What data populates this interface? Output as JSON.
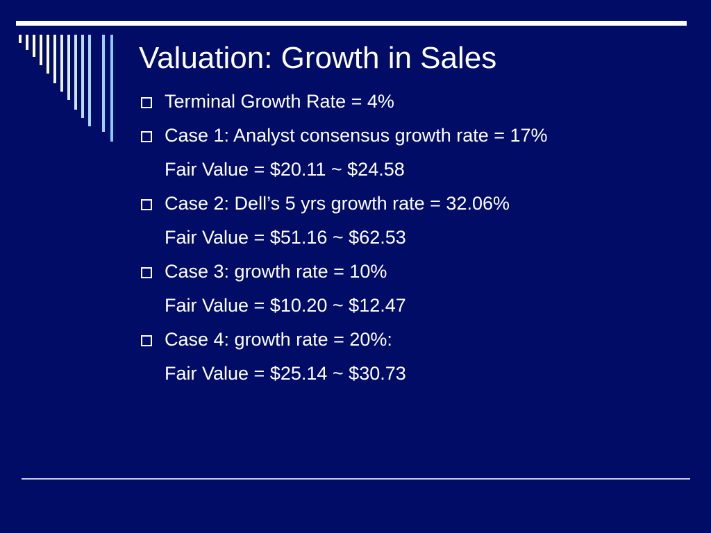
{
  "slide": {
    "title": "Valuation: Growth in Sales",
    "items": [
      {
        "type": "bullet",
        "text": "Terminal Growth Rate = 4%"
      },
      {
        "type": "bullet",
        "text": "Case 1: Analyst consensus growth rate = 17%"
      },
      {
        "type": "sub",
        "text": "Fair Value = $20.11 ~ $24.58"
      },
      {
        "type": "bullet",
        "text": "Case 2: Dell’s 5 yrs growth rate = 32.06%"
      },
      {
        "type": "sub",
        "text": "Fair Value = $51.16 ~ $62.53"
      },
      {
        "type": "bullet",
        "text": "Case 3: growth rate = 10%"
      },
      {
        "type": "sub",
        "text": "Fair Value = $10.20 ~ $12.47"
      },
      {
        "type": "bullet",
        "text": "Case 4: growth rate = 20%:"
      },
      {
        "type": "sub",
        "text": "Fair Value = $25.14 ~ $30.73"
      }
    ]
  },
  "theme": {
    "background": "#000c66",
    "text": "#ffffff",
    "bar_colors": [
      "#ffffff",
      "#fffde0",
      "#e8f2ff",
      "#cfe3ff",
      "#a8d4ff"
    ]
  }
}
